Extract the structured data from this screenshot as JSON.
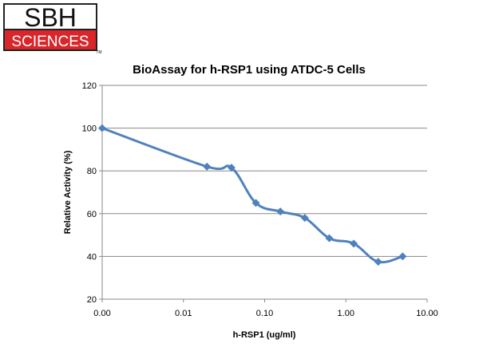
{
  "logo": {
    "top_text": "SBH",
    "bottom_text": "SCIENCES",
    "trademark": "TM",
    "colors": {
      "top_bg": "#ffffff",
      "bottom_bg": "#d9262a",
      "border": "#222222"
    }
  },
  "chart_data": {
    "type": "line",
    "title": "BioAssay for h-RSP1 using ATDC-5 Cells",
    "xlabel": "h-RSP1 (ug/ml)",
    "ylabel": "Relative Activity (%)",
    "x_scale": "log",
    "xlim": [
      0.001,
      10
    ],
    "ylim": [
      20,
      120
    ],
    "x_ticks": [
      "0.00",
      "0.01",
      "0.10",
      "1.00",
      "10.00"
    ],
    "y_ticks": [
      "20",
      "40",
      "60",
      "80",
      "100",
      "120"
    ],
    "grid": {
      "horizontal": true,
      "vertical": false
    },
    "series": [
      {
        "color": "#4f81bd",
        "marker": "diamond",
        "x": [
          0.001,
          0.0195,
          0.039,
          0.078,
          0.156,
          0.3125,
          0.625,
          1.25,
          2.5,
          5.0
        ],
        "y": [
          100,
          82,
          81.5,
          65,
          61,
          58,
          48.5,
          46,
          37.5,
          40
        ]
      }
    ]
  }
}
